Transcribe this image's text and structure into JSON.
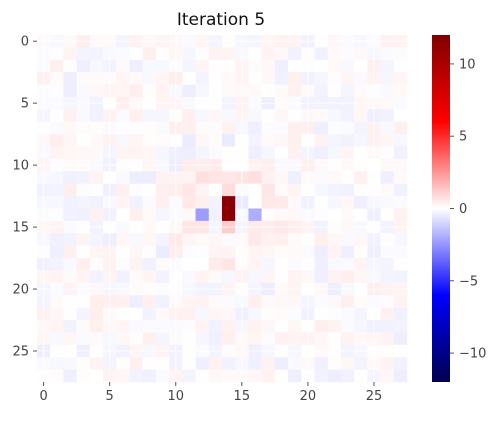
{
  "chart_data": {
    "type": "heatmap",
    "title": "Iteration 5",
    "xlabel": "",
    "ylabel": "",
    "rows": 28,
    "cols": 28,
    "x_ticks": [
      0,
      5,
      10,
      15,
      20,
      25
    ],
    "y_ticks": [
      0,
      5,
      10,
      15,
      20,
      25
    ],
    "color_range": [
      -12,
      12
    ],
    "colormap": "seismic",
    "colorbar_ticks": [
      10,
      5,
      0,
      -5,
      -10
    ],
    "colorbar_tick_labels": [
      "10",
      "5",
      "0",
      "−5",
      "−10"
    ],
    "grid": true,
    "notable_cells": [
      {
        "row": 14,
        "col": 14,
        "value": 11.5
      },
      {
        "row": 13,
        "col": 14,
        "value": 11.5
      },
      {
        "row": 15,
        "col": 14,
        "value": 1.2
      },
      {
        "row": 12,
        "col": 14,
        "value": 0.8
      },
      {
        "row": 14,
        "col": 12,
        "value": -2.3
      },
      {
        "row": 14,
        "col": 16,
        "value": -1.9
      }
    ]
  }
}
